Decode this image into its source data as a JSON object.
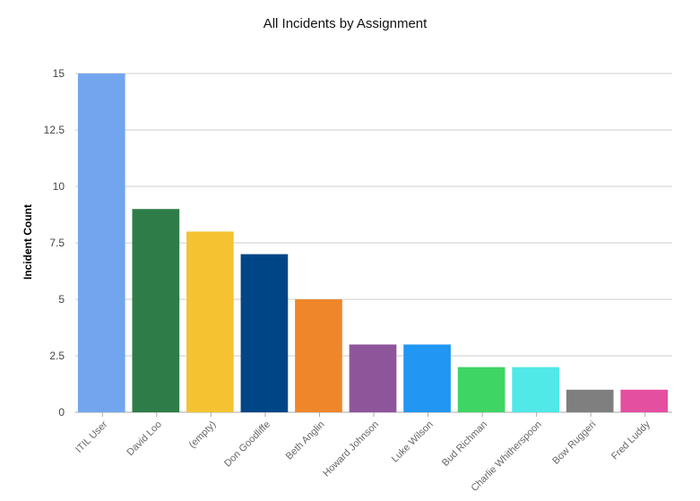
{
  "chart_data": {
    "type": "bar",
    "title": "All Incidents by Assignment",
    "xlabel": "",
    "ylabel": "Incident Count",
    "ylim": [
      0,
      15
    ],
    "yticks": [
      "0",
      "2.5",
      "5",
      "7.5",
      "10",
      "12.5",
      "15"
    ],
    "categories": [
      "ITIL User",
      "David Loo",
      "(empty)",
      "Don Goodliffe",
      "Beth Anglin",
      "Howard Johnson",
      "Luke Wilson",
      "Bud Richman",
      "Charlie Whitherspoon",
      "Bow Ruggeri",
      "Fred Luddy"
    ],
    "values": [
      15,
      9,
      8,
      7,
      5,
      3,
      3,
      2,
      2,
      1,
      1
    ],
    "colors": [
      "#73a5ef",
      "#2e7d48",
      "#f5c332",
      "#004687",
      "#f0862a",
      "#8e559b",
      "#2196f3",
      "#3ed564",
      "#51e8e8",
      "#7f7f7f",
      "#e54fa0"
    ],
    "grid": true,
    "legend": "none"
  }
}
